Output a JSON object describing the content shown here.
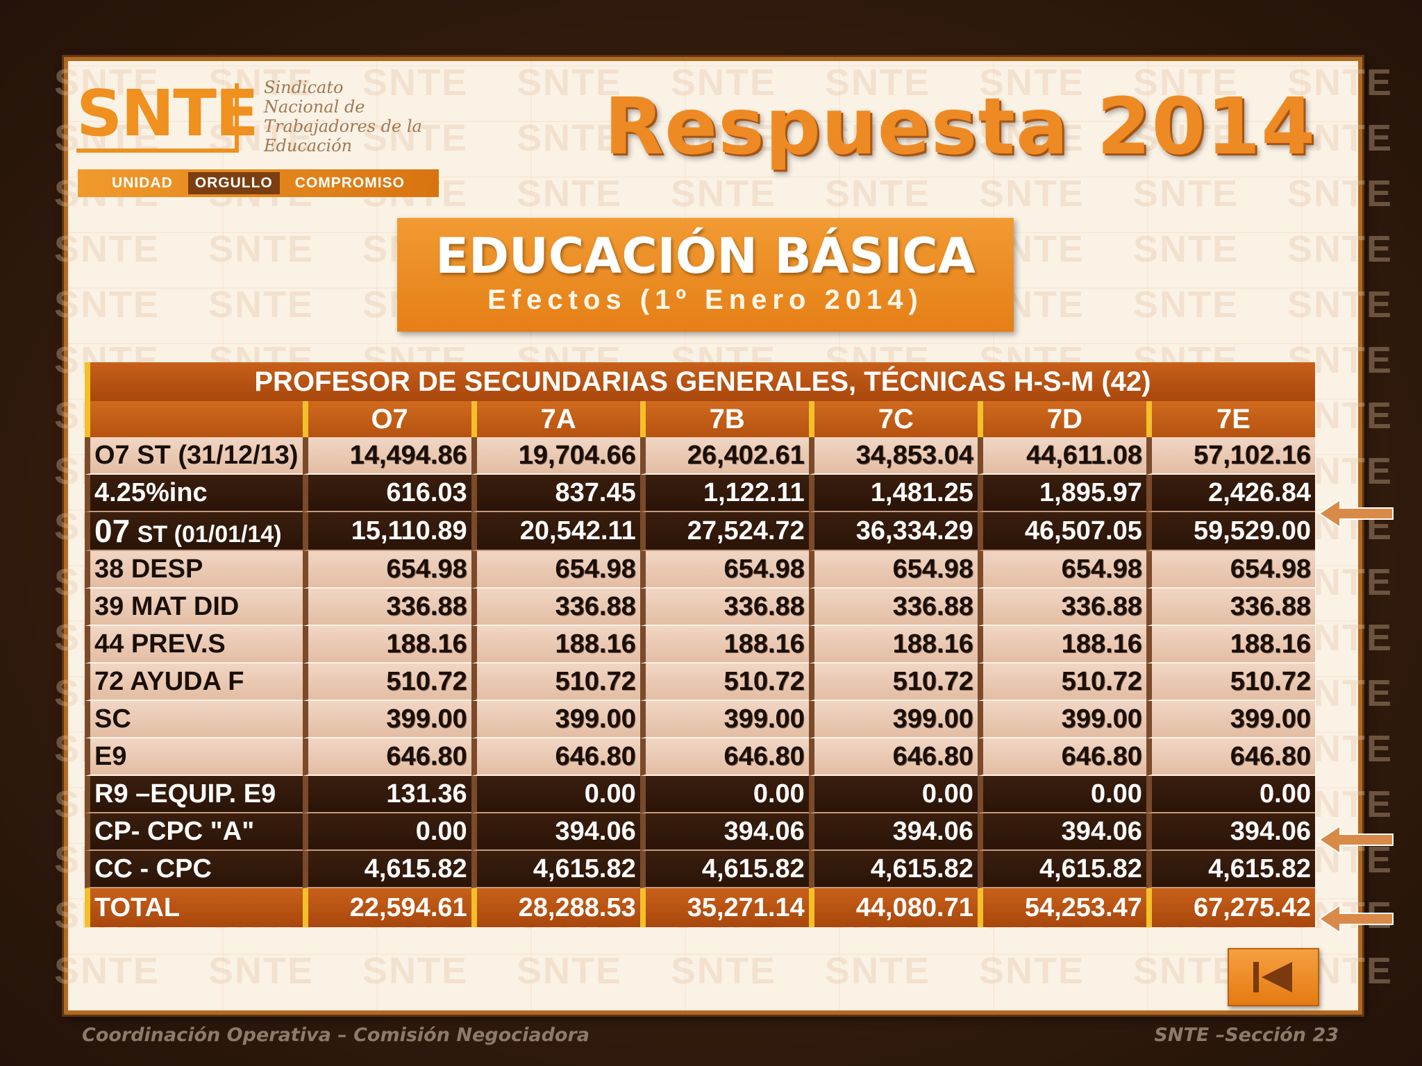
{
  "logo": {
    "mark": "SNTE",
    "name_lines": [
      "Sindicato",
      "Nacional de",
      "Trabajadores de la",
      "Educación"
    ],
    "motto": [
      "UNIDAD",
      "ORGULLO",
      "COMPROMISO"
    ]
  },
  "title": "Respuesta 2014",
  "section": {
    "title": "EDUCACIÓN  BÁSICA",
    "subtitle": "Efectos (1º Enero 2014)"
  },
  "table": {
    "title": "PROFESOR DE SECUNDARIAS GENERALES, TÉCNICAS H-S-M (42)",
    "columns": [
      "O7",
      "7A",
      "7B",
      "7C",
      "7D",
      "7E"
    ],
    "rows": [
      {
        "label": "O7 ST (31/12/13)",
        "style": "light",
        "values": [
          "14,494.86",
          "19,704.66",
          "26,402.61",
          "34,853.04",
          "44,611.08",
          "57,102.16"
        ]
      },
      {
        "label": "4.25%inc",
        "style": "dark",
        "values": [
          "616.03",
          "837.45",
          "1,122.11",
          "1,481.25",
          "1,895.97",
          "2,426.84"
        ]
      },
      {
        "label_big": "07",
        "label_small": "ST (01/01/14)",
        "style": "dark",
        "values": [
          "15,110.89",
          "20,542.11",
          "27,524.72",
          "36,334.29",
          "46,507.05",
          "59,529.00"
        ]
      },
      {
        "label": "38 DESP",
        "style": "light",
        "values": [
          "654.98",
          "654.98",
          "654.98",
          "654.98",
          "654.98",
          "654.98"
        ]
      },
      {
        "label": "39 MAT DID",
        "style": "light",
        "values": [
          "336.88",
          "336.88",
          "336.88",
          "336.88",
          "336.88",
          "336.88"
        ]
      },
      {
        "label": "44 PREV.S",
        "style": "light",
        "values": [
          "188.16",
          "188.16",
          "188.16",
          "188.16",
          "188.16",
          "188.16"
        ]
      },
      {
        "label": "72 AYUDA F",
        "style": "light",
        "values": [
          "510.72",
          "510.72",
          "510.72",
          "510.72",
          "510.72",
          "510.72"
        ]
      },
      {
        "label": "SC",
        "style": "light",
        "values": [
          "399.00",
          "399.00",
          "399.00",
          "399.00",
          "399.00",
          "399.00"
        ]
      },
      {
        "label": "E9",
        "style": "light",
        "values": [
          "646.80",
          "646.80",
          "646.80",
          "646.80",
          "646.80",
          "646.80"
        ]
      },
      {
        "label": "R9 –EQUIP. E9",
        "style": "dark",
        "values": [
          "131.36",
          "0.00",
          "0.00",
          "0.00",
          "0.00",
          "0.00"
        ]
      },
      {
        "label": "CP- CPC \"A\"",
        "style": "dark",
        "values": [
          "0.00",
          "394.06",
          "394.06",
          "394.06",
          "394.06",
          "394.06"
        ]
      },
      {
        "label": "CC - CPC",
        "style": "dark",
        "values": [
          "4,615.82",
          "4,615.82",
          "4,615.82",
          "4,615.82",
          "4,615.82",
          "4,615.82"
        ]
      },
      {
        "label": "TOTAL",
        "style": "total",
        "values": [
          "22,594.61",
          "28,288.53",
          "35,271.14",
          "44,080.71",
          "54,253.47",
          "67,275.42"
        ]
      }
    ]
  },
  "footer": {
    "left": "Coordinación Operativa – Comisión Negociadora",
    "right": "SNTE –Sección  23"
  },
  "colors": {
    "accent_orange": "#ee8a24",
    "dark_brown": "#2a1407",
    "gold_border": "#f4c02a"
  },
  "icons": {
    "nav": "skip-back-icon",
    "arrow": "pointer-arrow-icon"
  }
}
